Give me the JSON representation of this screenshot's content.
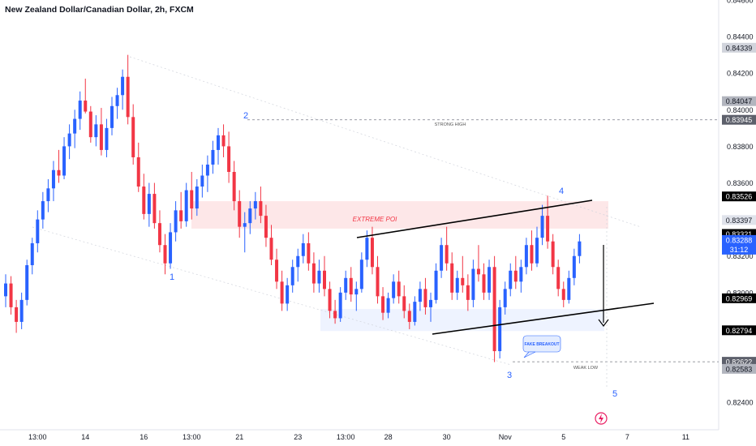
{
  "header": {
    "title": "New Zealand Dollar/Canadian Dollar, 2h, FXCM"
  },
  "chart_data": {
    "type": "candlestick",
    "symbol": "NZD/CAD",
    "interval": "2h",
    "source": "FXCM",
    "ylim": [
      0.8225,
      0.846
    ],
    "y_ticks": [
      "0.84600",
      "0.84400",
      "0.84200",
      "0.84000",
      "0.83800",
      "0.83600",
      "0.83400",
      "0.83200",
      "0.83000",
      "0.82800",
      "0.82600",
      "0.82400"
    ],
    "x_ticks": [
      {
        "label": "13:00",
        "idx": 6
      },
      {
        "label": "14",
        "idx": 15
      },
      {
        "label": "16",
        "idx": 26
      },
      {
        "label": "13:00",
        "idx": 35
      },
      {
        "label": "21",
        "idx": 44
      },
      {
        "label": "23",
        "idx": 55
      },
      {
        "label": "13:00",
        "idx": 64
      },
      {
        "label": "28",
        "idx": 72
      },
      {
        "label": "30",
        "idx": 83
      },
      {
        "label": "Nov",
        "idx": 94
      },
      {
        "label": "5",
        "idx": 105
      },
      {
        "label": "7",
        "idx": 117
      },
      {
        "label": "11",
        "idx": 128
      }
    ],
    "colors": {
      "up": "#2962ff",
      "down": "#f23645",
      "annotation": "#000000",
      "wave": "#2962ff"
    },
    "price_labels": [
      {
        "text": "0.84339",
        "value": 0.84339,
        "bg": "#d1d4dc",
        "fg": "#131722"
      },
      {
        "text": "0.84047",
        "value": 0.84047,
        "bg": "#b2b5be",
        "fg": "#131722"
      },
      {
        "text": "0.83945",
        "value": 0.83945,
        "bg": "#5d606b",
        "fg": "#ffffff"
      },
      {
        "text": "0.83526",
        "value": 0.83526,
        "bg": "#000000",
        "fg": "#ffffff"
      },
      {
        "text": "0.83397",
        "value": 0.83397,
        "bg": "#e0e3eb",
        "fg": "#131722"
      },
      {
        "text": "0.83321",
        "value": 0.83321,
        "bg": "#000000",
        "fg": "#ffffff"
      },
      {
        "text": "0.83288",
        "value": 0.83288,
        "bg": "#2962ff",
        "fg": "#ffffff",
        "sub": "31:12"
      },
      {
        "text": "0.82969",
        "value": 0.82969,
        "bg": "#000000",
        "fg": "#ffffff"
      },
      {
        "text": "0.82794",
        "value": 0.82794,
        "bg": "#000000",
        "fg": "#ffffff"
      },
      {
        "text": "0.82622",
        "value": 0.82622,
        "bg": "#5d606b",
        "fg": "#ffffff"
      },
      {
        "text": "0.82583",
        "value": 0.82583,
        "bg": "#b2b5be",
        "fg": "#131722"
      }
    ],
    "annotations": {
      "strong_high": "STRONG HIGH",
      "weak_low": "WEAK LOW",
      "extreme_poi": "EXTREME POI",
      "fake_breakout": "FAKE BREAKOUT",
      "waves": [
        "1",
        "2",
        "3",
        "4",
        "5"
      ]
    },
    "candles": [
      [
        0.8298,
        0.831,
        0.8292,
        0.8305
      ],
      [
        0.8305,
        0.8309,
        0.8288,
        0.8292
      ],
      [
        0.8292,
        0.8296,
        0.8278,
        0.8284
      ],
      [
        0.8284,
        0.83,
        0.828,
        0.8296
      ],
      [
        0.8296,
        0.8318,
        0.8293,
        0.8315
      ],
      [
        0.8315,
        0.833,
        0.831,
        0.8327
      ],
      [
        0.8327,
        0.8345,
        0.8322,
        0.834
      ],
      [
        0.834,
        0.8355,
        0.8335,
        0.835
      ],
      [
        0.835,
        0.8362,
        0.8344,
        0.8357
      ],
      [
        0.8357,
        0.8372,
        0.835,
        0.8367
      ],
      [
        0.8367,
        0.8378,
        0.836,
        0.8364
      ],
      [
        0.8364,
        0.8385,
        0.8362,
        0.838
      ],
      [
        0.838,
        0.8392,
        0.8373,
        0.8387
      ],
      [
        0.8387,
        0.84,
        0.8379,
        0.8395
      ],
      [
        0.8395,
        0.841,
        0.8389,
        0.8405
      ],
      [
        0.8405,
        0.8417,
        0.8398,
        0.8399
      ],
      [
        0.8399,
        0.8402,
        0.8382,
        0.8385
      ],
      [
        0.8385,
        0.8397,
        0.838,
        0.8392
      ],
      [
        0.8392,
        0.8401,
        0.8375,
        0.8378
      ],
      [
        0.8378,
        0.8395,
        0.8374,
        0.839
      ],
      [
        0.839,
        0.8407,
        0.8386,
        0.8402
      ],
      [
        0.8402,
        0.8412,
        0.8395,
        0.8408
      ],
      [
        0.8408,
        0.8422,
        0.84,
        0.8418
      ],
      [
        0.8418,
        0.843,
        0.8392,
        0.8396
      ],
      [
        0.8396,
        0.8403,
        0.837,
        0.8374
      ],
      [
        0.8374,
        0.8382,
        0.8355,
        0.8358
      ],
      [
        0.8358,
        0.8365,
        0.834,
        0.8343
      ],
      [
        0.8343,
        0.836,
        0.8336,
        0.8354
      ],
      [
        0.8354,
        0.836,
        0.8335,
        0.8338
      ],
      [
        0.8338,
        0.8345,
        0.8322,
        0.8326
      ],
      [
        0.8326,
        0.8332,
        0.831,
        0.8316
      ],
      [
        0.8316,
        0.8338,
        0.8313,
        0.8333
      ],
      [
        0.8333,
        0.835,
        0.8328,
        0.8345
      ],
      [
        0.8345,
        0.8355,
        0.8335,
        0.8339
      ],
      [
        0.8339,
        0.836,
        0.8336,
        0.8356
      ],
      [
        0.8356,
        0.8366,
        0.834,
        0.8346
      ],
      [
        0.8346,
        0.8362,
        0.8342,
        0.8358
      ],
      [
        0.8358,
        0.837,
        0.8352,
        0.8364
      ],
      [
        0.8364,
        0.8375,
        0.8355,
        0.837
      ],
      [
        0.837,
        0.8383,
        0.8365,
        0.8378
      ],
      [
        0.8378,
        0.839,
        0.837,
        0.8386
      ],
      [
        0.8386,
        0.8392,
        0.8374,
        0.838
      ],
      [
        0.838,
        0.8388,
        0.836,
        0.8366
      ],
      [
        0.8366,
        0.8372,
        0.8345,
        0.835
      ],
      [
        0.835,
        0.8356,
        0.833,
        0.8336
      ],
      [
        0.8336,
        0.8344,
        0.8322,
        0.8338
      ],
      [
        0.8338,
        0.835,
        0.8332,
        0.8346
      ],
      [
        0.8346,
        0.8355,
        0.834,
        0.835
      ],
      [
        0.835,
        0.8358,
        0.8338,
        0.8342
      ],
      [
        0.8342,
        0.8348,
        0.8325,
        0.833
      ],
      [
        0.833,
        0.8337,
        0.8315,
        0.8318
      ],
      [
        0.8318,
        0.8324,
        0.8302,
        0.8306
      ],
      [
        0.8306,
        0.8312,
        0.829,
        0.8294
      ],
      [
        0.8294,
        0.8308,
        0.829,
        0.8304
      ],
      [
        0.8304,
        0.8318,
        0.83,
        0.8314
      ],
      [
        0.8314,
        0.8324,
        0.8306,
        0.832
      ],
      [
        0.832,
        0.8332,
        0.8316,
        0.8327
      ],
      [
        0.8327,
        0.8333,
        0.8312,
        0.8316
      ],
      [
        0.8316,
        0.8322,
        0.83,
        0.8305
      ],
      [
        0.8305,
        0.8318,
        0.83,
        0.8312
      ],
      [
        0.8312,
        0.832,
        0.8298,
        0.8302
      ],
      [
        0.8302,
        0.8306,
        0.8286,
        0.829
      ],
      [
        0.829,
        0.8296,
        0.8283,
        0.8286
      ],
      [
        0.8286,
        0.8303,
        0.8284,
        0.83
      ],
      [
        0.83,
        0.8312,
        0.8296,
        0.8308
      ],
      [
        0.8308,
        0.8314,
        0.8295,
        0.8299
      ],
      [
        0.8299,
        0.8306,
        0.829,
        0.8302
      ],
      [
        0.8302,
        0.8322,
        0.83,
        0.8318
      ],
      [
        0.8318,
        0.8334,
        0.8314,
        0.833
      ],
      [
        0.833,
        0.8336,
        0.831,
        0.8314
      ],
      [
        0.8314,
        0.832,
        0.8294,
        0.8298
      ],
      [
        0.8298,
        0.8303,
        0.8285,
        0.8289
      ],
      [
        0.8289,
        0.83,
        0.8286,
        0.8297
      ],
      [
        0.8297,
        0.831,
        0.8294,
        0.8306
      ],
      [
        0.8306,
        0.8312,
        0.8294,
        0.8298
      ],
      [
        0.8298,
        0.8304,
        0.8286,
        0.829
      ],
      [
        0.829,
        0.8294,
        0.828,
        0.8284
      ],
      [
        0.8284,
        0.8298,
        0.8282,
        0.8295
      ],
      [
        0.8295,
        0.8306,
        0.829,
        0.8302
      ],
      [
        0.8302,
        0.8308,
        0.8288,
        0.8292
      ],
      [
        0.8292,
        0.83,
        0.8284,
        0.8296
      ],
      [
        0.8296,
        0.8316,
        0.8294,
        0.8312
      ],
      [
        0.8312,
        0.833,
        0.8308,
        0.8326
      ],
      [
        0.8326,
        0.8336,
        0.8312,
        0.8316
      ],
      [
        0.8316,
        0.8322,
        0.8296,
        0.83
      ],
      [
        0.83,
        0.8312,
        0.8296,
        0.8308
      ],
      [
        0.8308,
        0.832,
        0.83,
        0.8304
      ],
      [
        0.8304,
        0.831,
        0.829,
        0.8296
      ],
      [
        0.8296,
        0.8318,
        0.8292,
        0.8313
      ],
      [
        0.8313,
        0.8326,
        0.8306,
        0.831
      ],
      [
        0.831,
        0.8316,
        0.8296,
        0.83
      ],
      [
        0.83,
        0.8318,
        0.8296,
        0.8314
      ],
      [
        0.8314,
        0.832,
        0.8262,
        0.8268
      ],
      [
        0.8268,
        0.8296,
        0.8264,
        0.8292
      ],
      [
        0.8292,
        0.8306,
        0.8288,
        0.8302
      ],
      [
        0.8302,
        0.8316,
        0.8298,
        0.8312
      ],
      [
        0.8312,
        0.832,
        0.8302,
        0.8306
      ],
      [
        0.8306,
        0.8318,
        0.83,
        0.8314
      ],
      [
        0.8314,
        0.833,
        0.831,
        0.8326
      ],
      [
        0.8326,
        0.8334,
        0.8312,
        0.8316
      ],
      [
        0.8316,
        0.8336,
        0.8314,
        0.833
      ],
      [
        0.833,
        0.8348,
        0.8326,
        0.8342
      ],
      [
        0.8342,
        0.8353,
        0.8324,
        0.8328
      ],
      [
        0.8328,
        0.8332,
        0.831,
        0.8314
      ],
      [
        0.8314,
        0.8318,
        0.8298,
        0.8302
      ],
      [
        0.8302,
        0.8306,
        0.8292,
        0.8296
      ],
      [
        0.8296,
        0.8312,
        0.8294,
        0.8308
      ],
      [
        0.8308,
        0.8324,
        0.8304,
        0.832
      ],
      [
        0.832,
        0.8332,
        0.8316,
        0.8328
      ]
    ]
  }
}
